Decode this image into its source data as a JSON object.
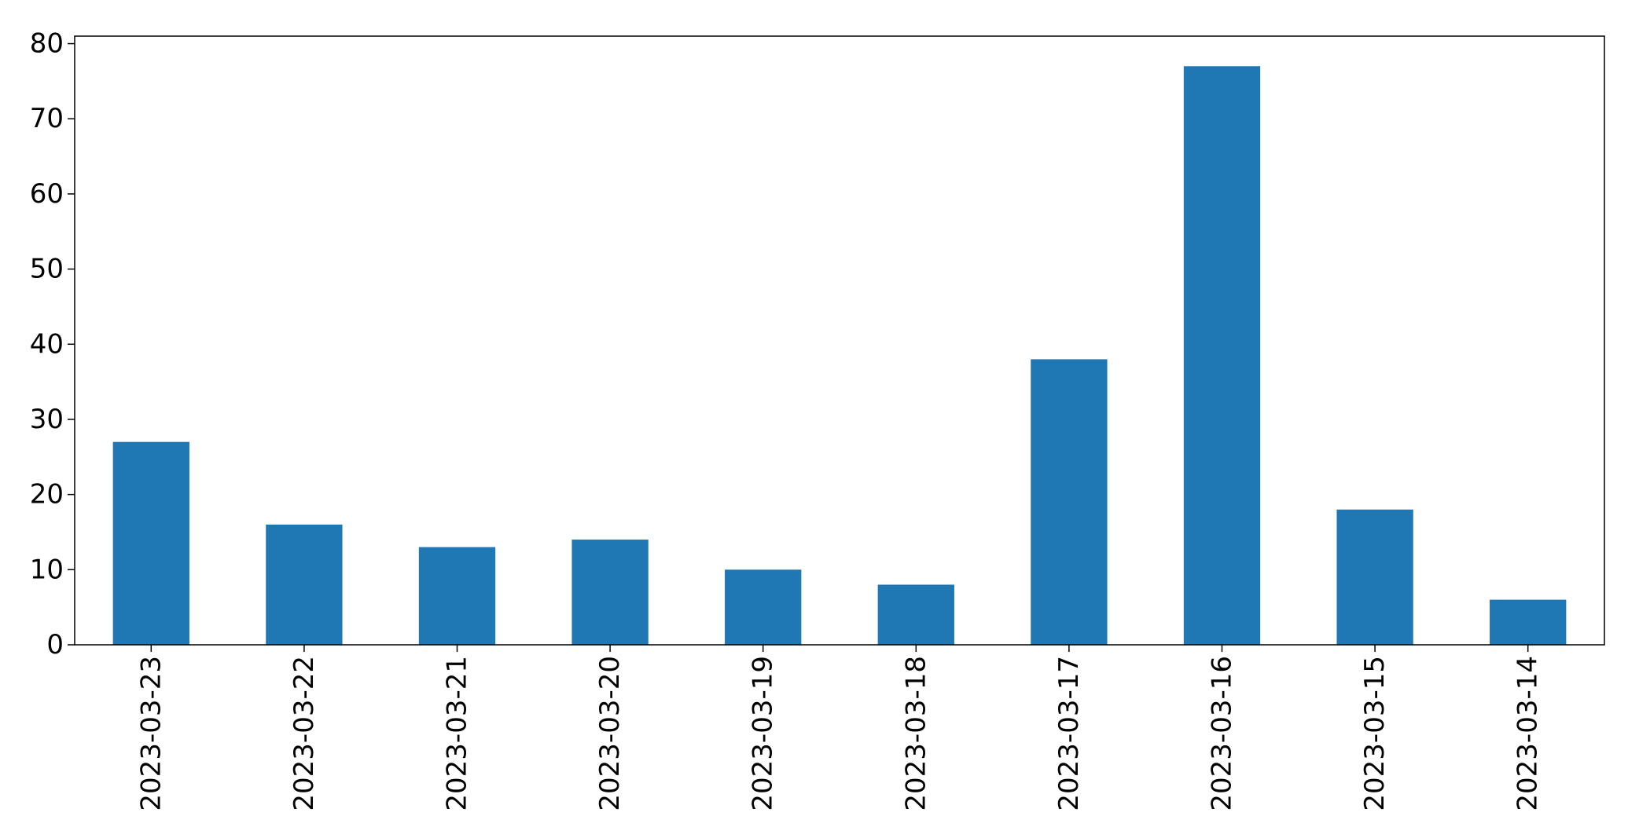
{
  "chart_data": {
    "type": "bar",
    "title": "",
    "xlabel": "",
    "ylabel": "",
    "categories": [
      "2023-03-23",
      "2023-03-22",
      "2023-03-21",
      "2023-03-20",
      "2023-03-19",
      "2023-03-18",
      "2023-03-17",
      "2023-03-16",
      "2023-03-15",
      "2023-03-14"
    ],
    "values": [
      27,
      16,
      13,
      14,
      10,
      8,
      38,
      77,
      18,
      6
    ],
    "ylim": [
      0,
      81
    ],
    "yticks": [
      "0",
      "10",
      "20",
      "30",
      "40",
      "50",
      "60",
      "70",
      "80"
    ],
    "bar_color": "#1f77b4",
    "grid": false,
    "legend": "none"
  }
}
